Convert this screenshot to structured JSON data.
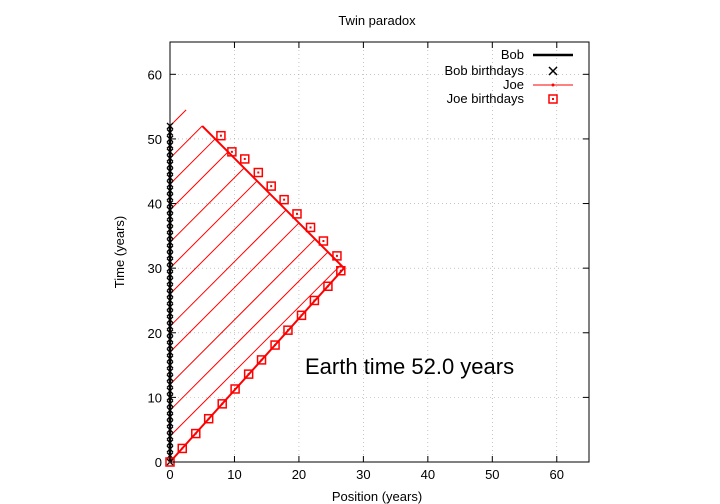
{
  "chart_data": {
    "type": "line",
    "title": "Twin paradox",
    "xlabel": "Position (years)",
    "ylabel": "Time (years)",
    "xlim": [
      0,
      65
    ],
    "ylim": [
      0,
      65
    ],
    "xticks": [
      0,
      10,
      20,
      30,
      40,
      50,
      60
    ],
    "yticks": [
      0,
      10,
      20,
      30,
      40,
      50,
      60
    ],
    "grid": true,
    "legend_position": "top-right",
    "annotation": "Earth time 52.0 years",
    "colors": {
      "bob": "#000000",
      "joe": "#ff0000",
      "grid": "#a0a0a0"
    },
    "series": [
      {
        "name": "Bob",
        "style": "thick-line",
        "x": [
          0,
          0
        ],
        "y": [
          0,
          52
        ]
      },
      {
        "name": "Bob birthdays",
        "style": "x-markers",
        "x": [
          0,
          0,
          0,
          0,
          0,
          0,
          0,
          0,
          0,
          0,
          0,
          0,
          0,
          0,
          0,
          0,
          0,
          0,
          0,
          0,
          0,
          0,
          0,
          0,
          0,
          0,
          0,
          0,
          0,
          0,
          0,
          0,
          0,
          0,
          0,
          0,
          0,
          0,
          0,
          0,
          0,
          0,
          0,
          0,
          0,
          0,
          0,
          0,
          0,
          0,
          0,
          0,
          0
        ],
        "y": [
          0,
          1,
          2,
          3,
          4,
          5,
          6,
          7,
          8,
          9,
          10,
          11,
          12,
          13,
          14,
          15,
          16,
          17,
          18,
          19,
          20,
          21,
          22,
          23,
          24,
          25,
          26,
          27,
          28,
          29,
          30,
          31,
          32,
          33,
          34,
          35,
          36,
          37,
          38,
          39,
          40,
          41,
          42,
          43,
          44,
          45,
          46,
          47,
          48,
          49,
          50,
          51,
          52
        ]
      },
      {
        "name": "Joe",
        "style": "line-with-light-signals",
        "x": [
          0,
          27,
          5
        ],
        "y": [
          0,
          30,
          52
        ]
      },
      {
        "name": "Joe birthdays",
        "style": "square-markers",
        "x": [
          0,
          1.9,
          4.0,
          6.0,
          8.1,
          10.1,
          12.2,
          14.2,
          16.3,
          18.3,
          20.4,
          22.4,
          24.5,
          26.5,
          25.9,
          23.8,
          21.8,
          19.7,
          17.7,
          15.7,
          13.7,
          11.6,
          9.6,
          7.9
        ],
        "y": [
          0,
          2.1,
          4.4,
          6.7,
          9.0,
          11.3,
          13.6,
          15.8,
          18.1,
          20.4,
          22.7,
          25.0,
          27.2,
          29.6,
          31.9,
          34.2,
          36.3,
          38.4,
          40.6,
          42.7,
          44.8,
          46.9,
          48.0,
          50.5
        ]
      }
    ],
    "signal_times": [
      4,
      8,
      12,
      17,
      21,
      26,
      30,
      34,
      39,
      43,
      47,
      52
    ]
  }
}
